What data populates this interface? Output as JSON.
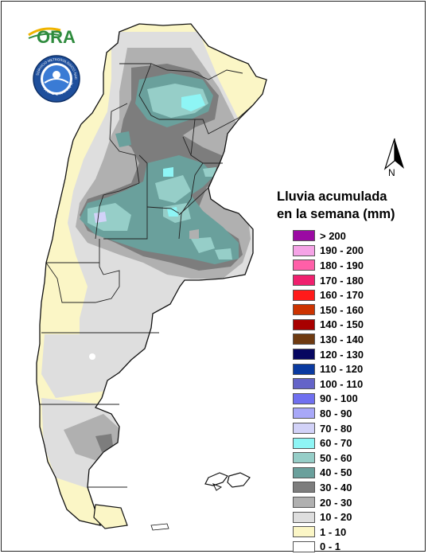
{
  "logos": {
    "ora": "ORA",
    "smn_ring": "SERVICIO METEOROLÓGICO NACIONAL",
    "smn_bottom": "ARGENTINA"
  },
  "north": "N",
  "legend": {
    "title_line1": "Lluvia acumulada",
    "title_line2": "en la semana (mm)",
    "items": [
      {
        "label": "> 200",
        "color": "#9b0aa3"
      },
      {
        "label": "190 - 200",
        "color": "#f5a3e6"
      },
      {
        "label": "180 - 190",
        "color": "#ff5fa8"
      },
      {
        "label": "170 - 180",
        "color": "#f0206e"
      },
      {
        "label": "160 - 170",
        "color": "#ff1a1a"
      },
      {
        "label": "150 - 160",
        "color": "#cc3300"
      },
      {
        "label": "140 - 150",
        "color": "#a80000"
      },
      {
        "label": "130 - 140",
        "color": "#6e3a10"
      },
      {
        "label": "120 - 130",
        "color": "#060660"
      },
      {
        "label": "110 - 120",
        "color": "#0a3aa0"
      },
      {
        "label": "100 - 110",
        "color": "#6464c8"
      },
      {
        "label": "90 - 100",
        "color": "#7070f0"
      },
      {
        "label": "80 - 90",
        "color": "#a8a8f8"
      },
      {
        "label": "70 - 80",
        "color": "#d2d2f8"
      },
      {
        "label": "60 - 70",
        "color": "#8ef5f5"
      },
      {
        "label": "50 - 60",
        "color": "#96cec8"
      },
      {
        "label": "40 - 50",
        "color": "#6aa09c"
      },
      {
        "label": "30 - 40",
        "color": "#7d7d7d"
      },
      {
        "label": "20 - 30",
        "color": "#b0b0b0"
      },
      {
        "label": "10 - 20",
        "color": "#dedede"
      },
      {
        "label": "1 - 10",
        "color": "#fbf6c6"
      },
      {
        "label": "0 - 1",
        "color": "#ffffff"
      }
    ]
  }
}
